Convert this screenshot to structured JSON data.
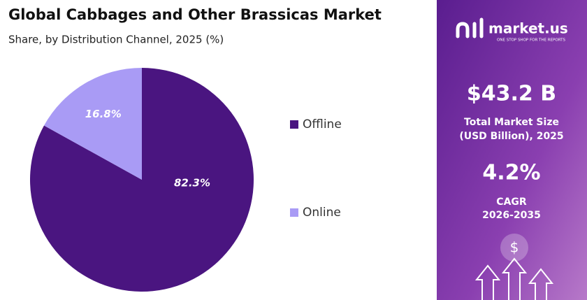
{
  "chart_data": {
    "type": "pie",
    "title": "Global Cabbages and Other Brassicas Market",
    "subtitle": "Share, by Distribution Channel, 2025 (%)",
    "categories": [
      "Offline",
      "Online"
    ],
    "values": [
      82.3,
      16.8
    ],
    "value_labels": [
      "82.3%",
      "16.8%"
    ],
    "colors": [
      "#4a1580",
      "#a99bf5"
    ],
    "legend": "right"
  },
  "panel": {
    "brand": "market.us",
    "tagline": "ONE STOP SHOP FOR THE REPORTS",
    "market_size": "$43.2 B",
    "market_size_label": [
      "Total Market Size",
      "(USD Billion), 2025"
    ],
    "cagr": "4.2%",
    "cagr_label": [
      "CAGR",
      "2026-2035"
    ],
    "icon": "$"
  }
}
